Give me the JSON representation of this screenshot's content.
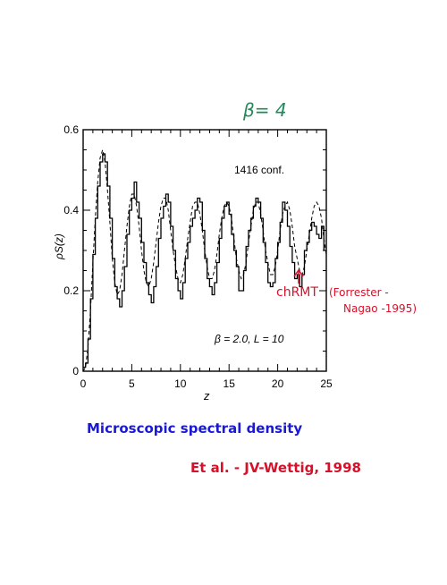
{
  "annotations": {
    "beta_title": "β= 4",
    "chrmt_label": "chRMT",
    "chrmt_ref_line1": "(Forrester -",
    "chrmt_ref_line2": "Nagao -1995)",
    "caption": "Microscopic spectral density",
    "citation": "Et al. - JV-Wettig, 1998",
    "colors": {
      "green": "#1f8a5a",
      "red": "#d8102a",
      "blue": "#1a1ad0",
      "ink": "#000000"
    }
  },
  "chart_data": {
    "type": "line",
    "title": "",
    "xlabel": "z",
    "ylabel": "ρS(z)",
    "xlim": [
      0,
      25
    ],
    "ylim": [
      0,
      0.6
    ],
    "x_ticks": [
      0,
      5,
      10,
      15,
      20,
      25
    ],
    "y_ticks": [
      0,
      0.2,
      0.4,
      0.6
    ],
    "x_minor_step": 1,
    "y_minor_step": 0.05,
    "inset_texts": {
      "conf": "1416 conf.",
      "params": "β = 2.0, L = 10"
    },
    "series": [
      {
        "style": "step",
        "x": [
          0.0,
          0.25,
          0.5,
          0.75,
          1.0,
          1.25,
          1.5,
          1.75,
          2.0,
          2.25,
          2.5,
          2.75,
          3.0,
          3.25,
          3.5,
          3.75,
          4.0,
          4.25,
          4.5,
          4.75,
          5.0,
          5.25,
          5.5,
          5.75,
          6.0,
          6.25,
          6.5,
          6.75,
          7.0,
          7.25,
          7.5,
          7.75,
          8.0,
          8.25,
          8.5,
          8.75,
          9.0,
          9.25,
          9.5,
          9.75,
          10.0,
          10.25,
          10.5,
          10.75,
          11.0,
          11.25,
          11.5,
          11.75,
          12.0,
          12.25,
          12.5,
          12.75,
          13.0,
          13.25,
          13.5,
          13.75,
          14.0,
          14.25,
          14.5,
          14.75,
          15.0,
          15.25,
          15.5,
          15.75,
          16.0,
          16.25,
          16.5,
          16.75,
          17.0,
          17.25,
          17.5,
          17.75,
          18.0,
          18.25,
          18.5,
          18.75,
          19.0,
          19.25,
          19.5,
          19.75,
          20.0,
          20.25,
          20.5,
          20.75,
          21.0,
          21.25,
          21.5,
          21.75,
          22.0,
          22.25,
          22.5,
          22.75,
          23.0,
          23.25,
          23.5,
          23.75,
          24.0,
          24.25,
          24.5,
          24.75
        ],
        "y": [
          0.01,
          0.02,
          0.08,
          0.18,
          0.29,
          0.38,
          0.46,
          0.52,
          0.54,
          0.52,
          0.46,
          0.38,
          0.28,
          0.21,
          0.18,
          0.16,
          0.2,
          0.26,
          0.34,
          0.4,
          0.43,
          0.47,
          0.42,
          0.38,
          0.32,
          0.27,
          0.22,
          0.19,
          0.17,
          0.21,
          0.26,
          0.33,
          0.38,
          0.41,
          0.44,
          0.42,
          0.36,
          0.3,
          0.23,
          0.2,
          0.18,
          0.22,
          0.28,
          0.32,
          0.36,
          0.38,
          0.4,
          0.43,
          0.42,
          0.35,
          0.28,
          0.23,
          0.21,
          0.19,
          0.22,
          0.27,
          0.33,
          0.38,
          0.41,
          0.42,
          0.39,
          0.34,
          0.3,
          0.26,
          0.2,
          0.2,
          0.25,
          0.31,
          0.35,
          0.38,
          0.41,
          0.43,
          0.42,
          0.38,
          0.32,
          0.27,
          0.22,
          0.21,
          0.22,
          0.28,
          0.32,
          0.37,
          0.42,
          0.4,
          0.36,
          0.31,
          0.27,
          0.23,
          0.24,
          0.21,
          0.24,
          0.3,
          0.32,
          0.35,
          0.37,
          0.36,
          0.34,
          0.33,
          0.36,
          0.3
        ]
      },
      {
        "style": "dashed",
        "x": [
          0.0,
          0.25,
          0.5,
          0.75,
          1.0,
          1.25,
          1.5,
          1.75,
          2.0,
          2.25,
          2.5,
          2.75,
          3.0,
          3.25,
          3.5,
          3.75,
          4.0,
          4.25,
          4.5,
          4.75,
          5.0,
          5.25,
          5.5,
          5.75,
          6.0,
          6.25,
          6.5,
          6.75,
          7.0,
          7.25,
          7.5,
          7.75,
          8.0,
          8.25,
          8.5,
          8.75,
          9.0,
          9.25,
          9.5,
          9.75,
          10.0,
          10.25,
          10.5,
          10.75,
          11.0,
          11.25,
          11.5,
          11.75,
          12.0,
          12.25,
          12.5,
          12.75,
          13.0,
          13.25,
          13.5,
          13.75,
          14.0,
          14.25,
          14.5,
          14.75,
          15.0,
          15.25,
          15.5,
          15.75,
          16.0,
          16.25,
          16.5,
          16.75,
          17.0,
          17.25,
          17.5,
          17.75,
          18.0,
          18.25,
          18.5,
          18.75,
          19.0,
          19.25,
          19.5,
          19.75,
          20.0,
          20.25,
          20.5,
          20.75,
          21.0,
          21.25,
          21.5,
          21.75,
          22.0,
          22.25,
          22.5,
          22.75,
          23.0,
          23.25,
          23.5,
          23.75,
          24.0,
          24.25,
          24.5,
          24.75,
          25.0
        ],
        "y": [
          0.0,
          0.01,
          0.06,
          0.15,
          0.27,
          0.38,
          0.47,
          0.53,
          0.55,
          0.52,
          0.45,
          0.37,
          0.28,
          0.22,
          0.19,
          0.2,
          0.24,
          0.3,
          0.36,
          0.41,
          0.44,
          0.44,
          0.41,
          0.36,
          0.3,
          0.25,
          0.22,
          0.21,
          0.23,
          0.27,
          0.32,
          0.37,
          0.41,
          0.43,
          0.43,
          0.4,
          0.35,
          0.3,
          0.26,
          0.23,
          0.22,
          0.24,
          0.28,
          0.33,
          0.37,
          0.41,
          0.42,
          0.42,
          0.39,
          0.35,
          0.3,
          0.26,
          0.23,
          0.23,
          0.25,
          0.29,
          0.34,
          0.38,
          0.41,
          0.42,
          0.41,
          0.38,
          0.33,
          0.28,
          0.25,
          0.23,
          0.24,
          0.27,
          0.32,
          0.36,
          0.4,
          0.42,
          0.42,
          0.39,
          0.35,
          0.3,
          0.27,
          0.24,
          0.24,
          0.26,
          0.3,
          0.35,
          0.39,
          0.41,
          0.42,
          0.4,
          0.36,
          0.31,
          0.28,
          0.25,
          0.24,
          0.26,
          0.3,
          0.34,
          0.38,
          0.41,
          0.42,
          0.41,
          0.38,
          0.33,
          0.29
        ]
      }
    ]
  }
}
